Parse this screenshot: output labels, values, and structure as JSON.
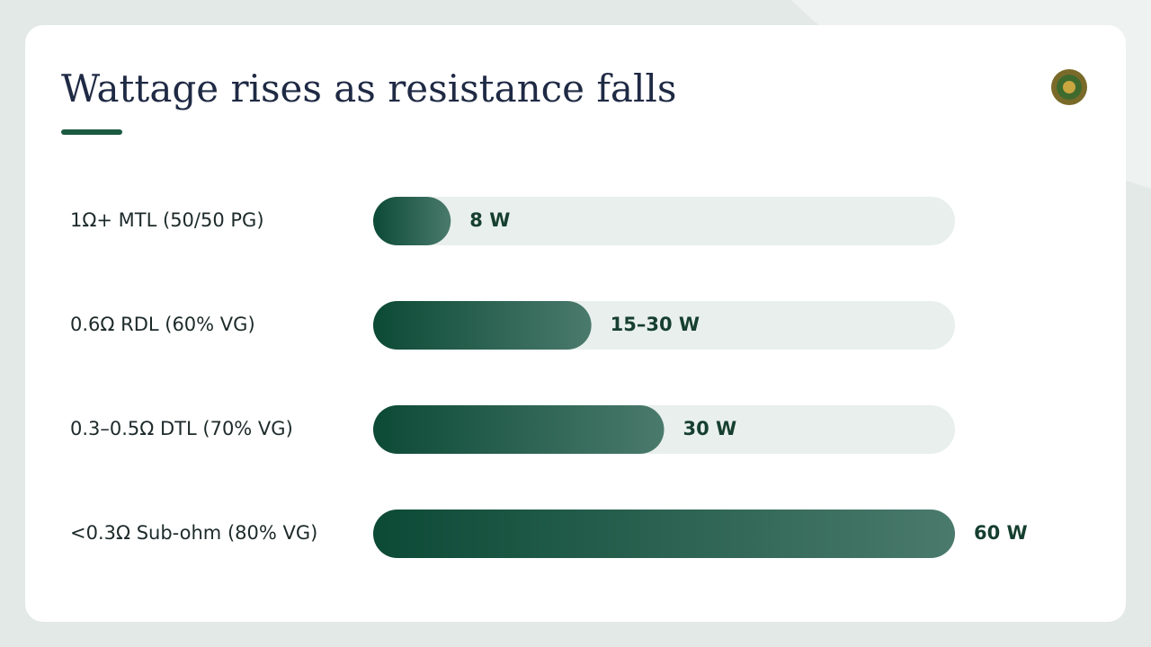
{
  "chart_data": {
    "type": "hbar",
    "title": "Wattage rises as resistance falls",
    "categories": [
      "1Ω+ MTL (50/50 PG)",
      "0.6Ω RDL (60% VG)",
      "0.3–0.5Ω DTL (70% VG)",
      "<0.3Ω Sub-ohm (80% VG)"
    ],
    "values": [
      8,
      22.5,
      30,
      60
    ],
    "value_labels": [
      "8 W",
      "15–30 W",
      "30 W",
      "60 W"
    ],
    "color": "#0e4e3a",
    "xlim": [
      0,
      60
    ]
  }
}
